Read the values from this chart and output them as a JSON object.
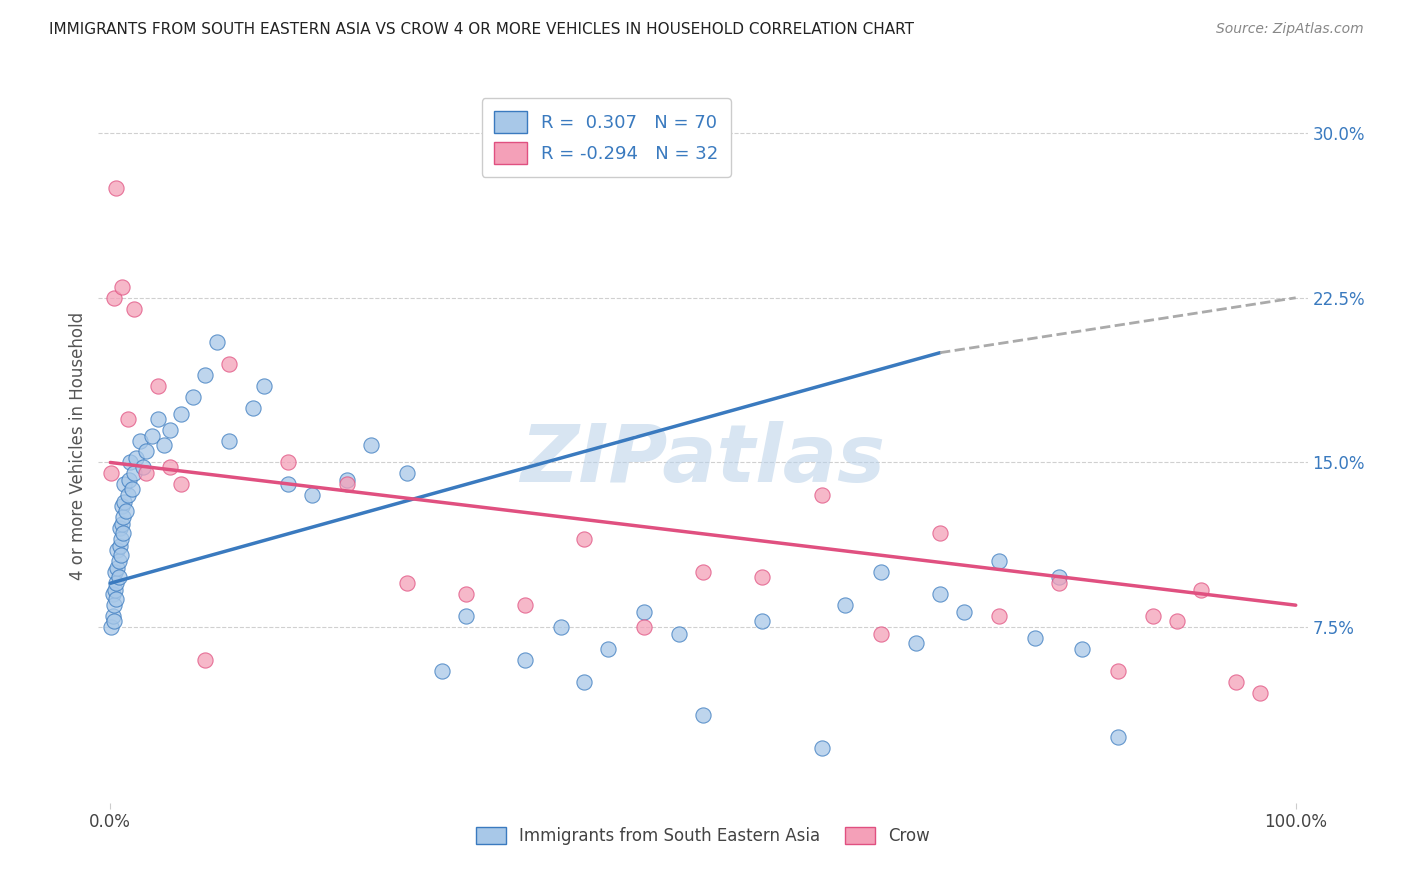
{
  "title": "IMMIGRANTS FROM SOUTH EASTERN ASIA VS CROW 4 OR MORE VEHICLES IN HOUSEHOLD CORRELATION CHART",
  "source": "Source: ZipAtlas.com",
  "ylabel": "4 or more Vehicles in Household",
  "legend_label1": "Immigrants from South Eastern Asia",
  "legend_label2": "Crow",
  "r1": 0.307,
  "n1": 70,
  "r2": -0.294,
  "n2": 32,
  "color_blue": "#a8c8e8",
  "color_pink": "#f4a0b8",
  "line_blue": "#3a7abf",
  "line_pink": "#e05080",
  "watermark": "ZIPatlas",
  "background_color": "#ffffff",
  "blue_scatter_x": [
    0.1,
    0.2,
    0.2,
    0.3,
    0.3,
    0.4,
    0.4,
    0.5,
    0.5,
    0.6,
    0.6,
    0.7,
    0.7,
    0.8,
    0.8,
    0.9,
    0.9,
    1.0,
    1.0,
    1.1,
    1.1,
    1.2,
    1.2,
    1.3,
    1.5,
    1.6,
    1.7,
    1.8,
    2.0,
    2.2,
    2.5,
    2.8,
    3.0,
    3.5,
    4.0,
    4.5,
    5.0,
    6.0,
    7.0,
    8.0,
    9.0,
    10.0,
    12.0,
    13.0,
    15.0,
    17.0,
    20.0,
    22.0,
    25.0,
    28.0,
    30.0,
    35.0,
    38.0,
    40.0,
    42.0,
    45.0,
    48.0,
    50.0,
    55.0,
    60.0,
    62.0,
    65.0,
    68.0,
    70.0,
    72.0,
    75.0,
    78.0,
    80.0,
    82.0,
    85.0
  ],
  "blue_scatter_y": [
    7.5,
    8.0,
    9.0,
    7.8,
    8.5,
    9.2,
    10.0,
    8.8,
    9.5,
    10.2,
    11.0,
    9.8,
    10.5,
    11.2,
    12.0,
    10.8,
    11.5,
    12.2,
    13.0,
    11.8,
    12.5,
    13.2,
    14.0,
    12.8,
    13.5,
    14.2,
    15.0,
    13.8,
    14.5,
    15.2,
    16.0,
    14.8,
    15.5,
    16.2,
    17.0,
    15.8,
    16.5,
    17.2,
    18.0,
    19.0,
    20.5,
    16.0,
    17.5,
    18.5,
    14.0,
    13.5,
    14.2,
    15.8,
    14.5,
    5.5,
    8.0,
    6.0,
    7.5,
    5.0,
    6.5,
    8.2,
    7.2,
    3.5,
    7.8,
    2.0,
    8.5,
    10.0,
    6.8,
    9.0,
    8.2,
    10.5,
    7.0,
    9.8,
    6.5,
    2.5
  ],
  "pink_scatter_x": [
    0.1,
    0.3,
    0.5,
    1.0,
    1.5,
    2.0,
    3.0,
    4.0,
    5.0,
    6.0,
    8.0,
    10.0,
    15.0,
    20.0,
    25.0,
    30.0,
    35.0,
    40.0,
    45.0,
    50.0,
    55.0,
    60.0,
    65.0,
    70.0,
    75.0,
    80.0,
    85.0,
    88.0,
    90.0,
    92.0,
    95.0,
    97.0
  ],
  "pink_scatter_y": [
    14.5,
    22.5,
    27.5,
    23.0,
    17.0,
    22.0,
    14.5,
    18.5,
    14.8,
    14.0,
    6.0,
    19.5,
    15.0,
    14.0,
    9.5,
    9.0,
    8.5,
    11.5,
    7.5,
    10.0,
    9.8,
    13.5,
    7.2,
    11.8,
    8.0,
    9.5,
    5.5,
    8.0,
    7.8,
    9.2,
    5.0,
    4.5
  ],
  "blue_line_x_start": 0,
  "blue_line_x_solid_end": 70,
  "blue_line_x_end": 100,
  "blue_line_y_start": 9.5,
  "blue_line_y_solid_end": 20.0,
  "blue_line_y_end": 22.5,
  "pink_line_x_start": 0,
  "pink_line_x_end": 100,
  "pink_line_y_start": 15.0,
  "pink_line_y_end": 8.5,
  "xmin": 0,
  "xmax": 100,
  "ymin": 0,
  "ymax": 32,
  "yticks": [
    7.5,
    15.0,
    22.5,
    30.0
  ],
  "ytick_labels": [
    "7.5%",
    "15.0%",
    "22.5%",
    "30.0%"
  ]
}
